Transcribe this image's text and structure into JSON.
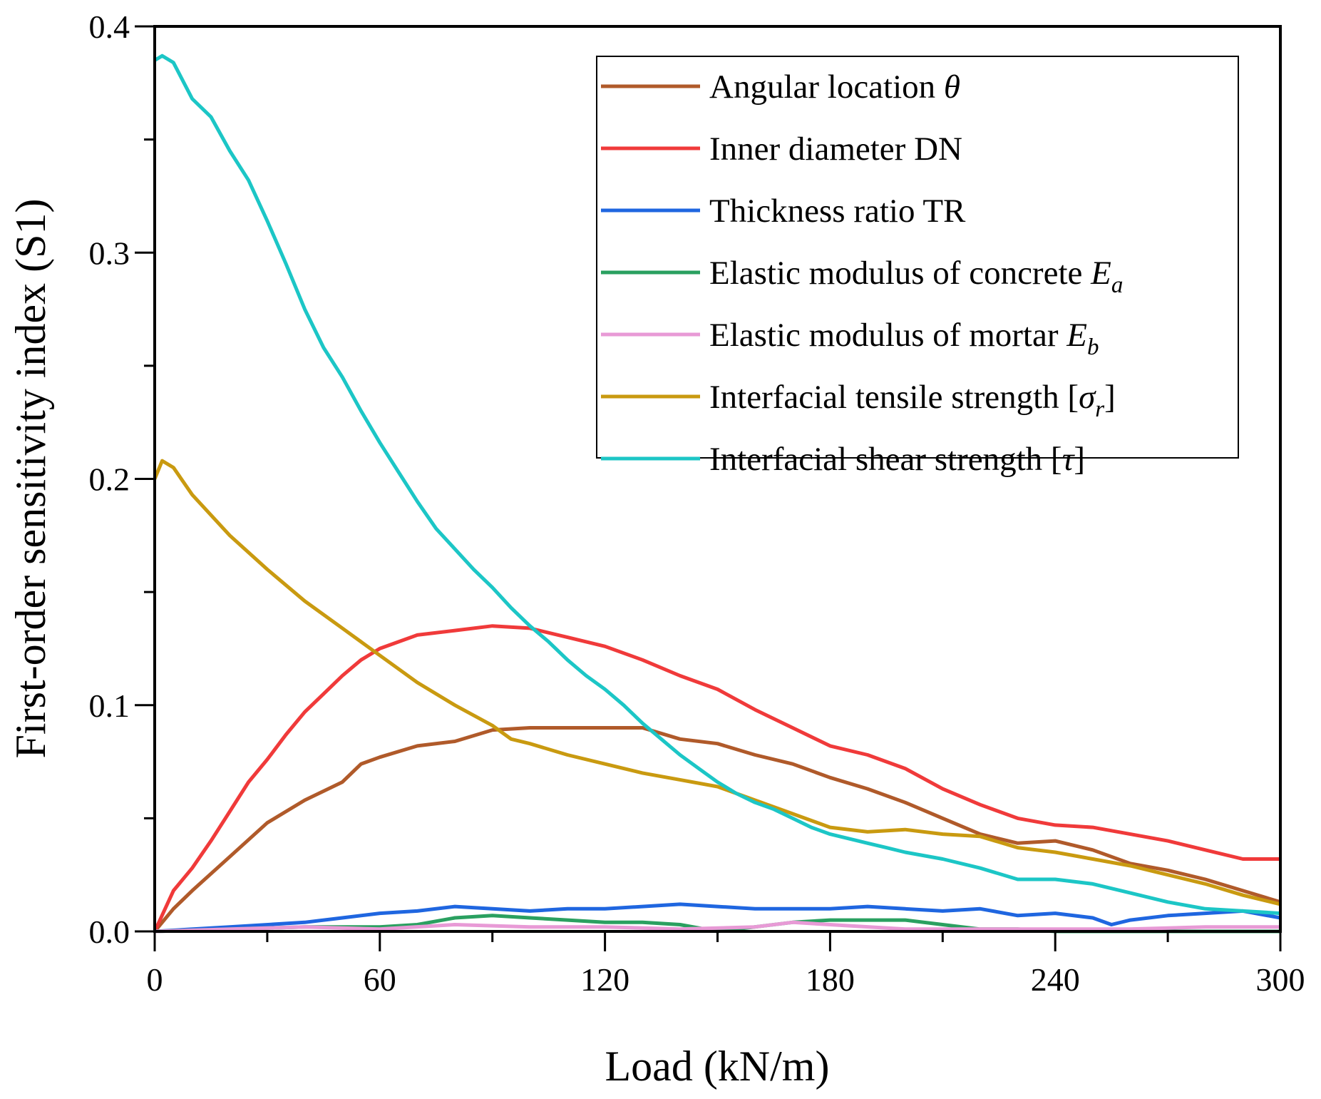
{
  "chart_data": {
    "type": "line",
    "title": "",
    "xlabel": "Load (kN/m)",
    "ylabel": "First-order sensitivity index (S1)",
    "xlim": [
      0,
      300
    ],
    "ylim": [
      0,
      0.4
    ],
    "xticks": [
      "0",
      "60",
      "120",
      "180",
      "240",
      "300"
    ],
    "xtick_values": [
      0,
      60,
      120,
      180,
      240,
      300
    ],
    "yticks": [
      "0.0",
      "0.1",
      "0.2",
      "0.3",
      "0.4"
    ],
    "ytick_values": [
      0,
      0.1,
      0.2,
      0.3,
      0.4
    ],
    "grid": false,
    "legend_position": "top-right",
    "series": [
      {
        "name": "Angular location θ",
        "label": "Angular location ",
        "symbol": "θ",
        "sub": "",
        "color": "#b05a2a",
        "x": [
          0,
          5,
          10,
          20,
          30,
          40,
          50,
          55,
          60,
          70,
          80,
          90,
          100,
          110,
          120,
          130,
          140,
          150,
          160,
          170,
          180,
          190,
          200,
          210,
          220,
          230,
          240,
          250,
          260,
          270,
          280,
          290,
          300
        ],
        "y": [
          0,
          0.01,
          0.018,
          0.033,
          0.048,
          0.058,
          0.066,
          0.074,
          0.077,
          0.082,
          0.084,
          0.089,
          0.09,
          0.09,
          0.09,
          0.09,
          0.085,
          0.083,
          0.078,
          0.074,
          0.068,
          0.063,
          0.057,
          0.05,
          0.043,
          0.039,
          0.04,
          0.036,
          0.03,
          0.027,
          0.023,
          0.018,
          0.013
        ]
      },
      {
        "name": "Inner diameter DN",
        "label": "Inner diameter DN",
        "symbol": "",
        "sub": "",
        "color": "#f03a3a",
        "x": [
          0,
          5,
          10,
          15,
          20,
          25,
          30,
          35,
          40,
          45,
          50,
          55,
          60,
          65,
          70,
          80,
          90,
          100,
          110,
          120,
          130,
          140,
          150,
          160,
          170,
          180,
          190,
          200,
          210,
          220,
          230,
          240,
          250,
          260,
          270,
          280,
          290,
          300
        ],
        "y": [
          0,
          0.018,
          0.028,
          0.04,
          0.053,
          0.066,
          0.076,
          0.087,
          0.097,
          0.105,
          0.113,
          0.12,
          0.125,
          0.128,
          0.131,
          0.133,
          0.135,
          0.134,
          0.13,
          0.126,
          0.12,
          0.113,
          0.107,
          0.098,
          0.09,
          0.082,
          0.078,
          0.072,
          0.063,
          0.056,
          0.05,
          0.047,
          0.046,
          0.043,
          0.04,
          0.036,
          0.032,
          0.032
        ]
      },
      {
        "name": "Thickness ratio TR",
        "label": "Thickness ratio TR",
        "symbol": "",
        "sub": "",
        "color": "#1f66e0",
        "x": [
          0,
          20,
          40,
          50,
          60,
          70,
          80,
          90,
          100,
          110,
          120,
          130,
          140,
          150,
          160,
          170,
          180,
          190,
          200,
          210,
          220,
          230,
          240,
          250,
          255,
          260,
          270,
          280,
          290,
          300
        ],
        "y": [
          0,
          0.002,
          0.004,
          0.006,
          0.008,
          0.009,
          0.011,
          0.01,
          0.009,
          0.01,
          0.01,
          0.011,
          0.012,
          0.011,
          0.01,
          0.01,
          0.01,
          0.011,
          0.01,
          0.009,
          0.01,
          0.007,
          0.008,
          0.006,
          0.003,
          0.005,
          0.007,
          0.008,
          0.009,
          0.006
        ]
      },
      {
        "name": "Elastic modulus of concrete Ea",
        "label": "Elastic modulus of concrete ",
        "symbol": "E",
        "sub": "a",
        "color": "#2aa060",
        "x": [
          0,
          20,
          40,
          60,
          70,
          80,
          90,
          100,
          110,
          120,
          130,
          140,
          150,
          160,
          170,
          180,
          190,
          200,
          210,
          220,
          230,
          240,
          300
        ],
        "y": [
          0,
          0.001,
          0.002,
          0.002,
          0.003,
          0.006,
          0.007,
          0.006,
          0.005,
          0.004,
          0.004,
          0.003,
          0,
          0.002,
          0.004,
          0.005,
          0.005,
          0.005,
          0.003,
          0.001,
          0.001,
          0,
          0
        ]
      },
      {
        "name": "Elastic modulus of mortar Eb",
        "label": "Elastic modulus of mortar ",
        "symbol": "E",
        "sub": "b",
        "color": "#e89ad6",
        "x": [
          0,
          40,
          60,
          80,
          100,
          120,
          140,
          160,
          170,
          180,
          200,
          220,
          260,
          280,
          300
        ],
        "y": [
          0,
          0.002,
          0.001,
          0.003,
          0.002,
          0.002,
          0.001,
          0.002,
          0.004,
          0.003,
          0.001,
          0.001,
          0.001,
          0.002,
          0.002
        ]
      },
      {
        "name": "Interfacial tensile strength [σr]",
        "label": "Interfacial tensile strength [",
        "symbol": "σ",
        "sub": "r",
        "close": "]",
        "color": "#c99a10",
        "x": [
          0,
          2,
          5,
          10,
          20,
          30,
          40,
          50,
          60,
          70,
          80,
          90,
          95,
          100,
          110,
          120,
          130,
          140,
          150,
          160,
          170,
          180,
          190,
          200,
          210,
          220,
          230,
          240,
          250,
          260,
          270,
          280,
          290,
          300
        ],
        "y": [
          0.2,
          0.208,
          0.205,
          0.193,
          0.175,
          0.16,
          0.146,
          0.134,
          0.122,
          0.11,
          0.1,
          0.091,
          0.085,
          0.083,
          0.078,
          0.074,
          0.07,
          0.067,
          0.064,
          0.058,
          0.052,
          0.046,
          0.044,
          0.045,
          0.043,
          0.042,
          0.037,
          0.035,
          0.032,
          0.029,
          0.025,
          0.021,
          0.016,
          0.012
        ]
      },
      {
        "name": "Interfacial shear strength [τ]",
        "label": "Interfacial shear strength [",
        "symbol": "τ",
        "sub": "",
        "close": "]",
        "color": "#1cc6c6",
        "x": [
          0,
          2,
          5,
          10,
          15,
          20,
          25,
          30,
          35,
          40,
          45,
          50,
          55,
          60,
          65,
          70,
          75,
          80,
          85,
          90,
          95,
          100,
          105,
          110,
          115,
          120,
          125,
          130,
          135,
          140,
          145,
          150,
          155,
          160,
          165,
          170,
          175,
          180,
          185,
          190,
          195,
          200,
          210,
          220,
          230,
          240,
          250,
          260,
          270,
          280,
          290,
          300
        ],
        "y": [
          0.385,
          0.387,
          0.384,
          0.368,
          0.36,
          0.345,
          0.332,
          0.314,
          0.295,
          0.275,
          0.258,
          0.245,
          0.23,
          0.216,
          0.203,
          0.19,
          0.178,
          0.169,
          0.16,
          0.152,
          0.143,
          0.135,
          0.128,
          0.12,
          0.113,
          0.107,
          0.1,
          0.092,
          0.085,
          0.078,
          0.072,
          0.066,
          0.061,
          0.057,
          0.054,
          0.05,
          0.046,
          0.043,
          0.041,
          0.039,
          0.037,
          0.035,
          0.032,
          0.028,
          0.023,
          0.023,
          0.021,
          0.017,
          0.013,
          0.01,
          0.009,
          0.008
        ]
      }
    ]
  }
}
